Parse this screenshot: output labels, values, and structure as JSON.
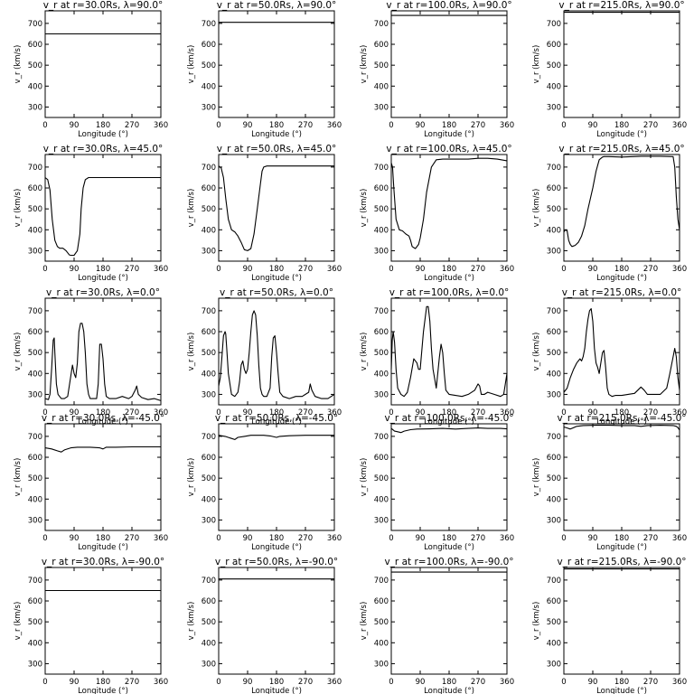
{
  "figure": {
    "xlabel": "Longitude (°)",
    "ylabel": "v_r (km/s)",
    "xticks": [
      0,
      90,
      180,
      270,
      360
    ],
    "yticks": [
      300,
      400,
      500,
      600,
      700
    ],
    "xlim": [
      0,
      360
    ],
    "ylim": [
      250,
      760
    ]
  },
  "chart_data": [
    {
      "type": "line",
      "title": "v_r at r=30.0Rs, λ=90.0°",
      "xlabel": "Longitude (°)",
      "ylabel": "v_r (km/s)",
      "series": [
        {
          "x": [
            0,
            360
          ],
          "y": [
            650,
            650
          ]
        }
      ]
    },
    {
      "type": "line",
      "title": "v_r at r=50.0Rs, λ=90.0°",
      "xlabel": "Longitude (°)",
      "ylabel": "v_r (km/s)",
      "series": [
        {
          "x": [
            0,
            360
          ],
          "y": [
            705,
            705
          ]
        }
      ]
    },
    {
      "type": "line",
      "title": "v_r at r=100.0Rs, λ=90.0°",
      "xlabel": "Longitude (°)",
      "ylabel": "v_r (km/s)",
      "series": [
        {
          "x": [
            0,
            360
          ],
          "y": [
            738,
            738
          ]
        }
      ]
    },
    {
      "type": "line",
      "title": "v_r at r=215.0Rs, λ=90.0°",
      "xlabel": "Longitude (°)",
      "ylabel": "v_r (km/s)",
      "series": [
        {
          "x": [
            0,
            360
          ],
          "y": [
            753,
            753
          ]
        }
      ]
    },
    {
      "type": "line",
      "title": "v_r at r=30.0Rs, λ=45.0°",
      "xlabel": "Longitude (°)",
      "ylabel": "v_r (km/s)",
      "series": [
        {
          "x": [
            0,
            8,
            15,
            22,
            30,
            38,
            45,
            55,
            65,
            75,
            80,
            90,
            100,
            108,
            112,
            118,
            125,
            135,
            150,
            180,
            270,
            360
          ],
          "y": [
            650,
            640,
            590,
            450,
            350,
            320,
            312,
            312,
            300,
            280,
            278,
            278,
            300,
            380,
            500,
            600,
            640,
            650,
            650,
            650,
            650,
            650
          ]
        }
      ]
    },
    {
      "type": "line",
      "title": "v_r at r=50.0Rs, λ=45.0°",
      "xlabel": "Longitude (°)",
      "ylabel": "v_r (km/s)",
      "series": [
        {
          "x": [
            0,
            8,
            15,
            22,
            30,
            40,
            50,
            60,
            70,
            80,
            90,
            100,
            110,
            120,
            130,
            135,
            140,
            150,
            180,
            270,
            360
          ],
          "y": [
            705,
            695,
            650,
            550,
            450,
            400,
            390,
            370,
            340,
            305,
            300,
            310,
            380,
            500,
            620,
            680,
            700,
            705,
            705,
            705,
            705
          ]
        }
      ]
    },
    {
      "type": "line",
      "title": "v_r at r=100.0Rs, λ=45.0°",
      "xlabel": "Longitude (°)",
      "ylabel": "v_r (km/s)",
      "series": [
        {
          "x": [
            0,
            4,
            8,
            15,
            25,
            35,
            45,
            55,
            60,
            65,
            75,
            85,
            90,
            100,
            110,
            125,
            140,
            160,
            200,
            240,
            270,
            300,
            330,
            360
          ],
          "y": [
            720,
            700,
            600,
            450,
            400,
            395,
            380,
            370,
            350,
            320,
            310,
            330,
            360,
            450,
            580,
            700,
            735,
            738,
            738,
            738,
            742,
            742,
            738,
            730
          ]
        }
      ]
    },
    {
      "type": "line",
      "title": "v_r at r=215.0Rs, λ=45.0°",
      "xlabel": "Longitude (°)",
      "ylabel": "v_r (km/s)",
      "series": [
        {
          "x": [
            0,
            5,
            10,
            15,
            20,
            25,
            35,
            45,
            55,
            65,
            75,
            90,
            100,
            110,
            120,
            125,
            140,
            180,
            240,
            300,
            340,
            345,
            350,
            355,
            360
          ],
          "y": [
            390,
            400,
            395,
            350,
            330,
            320,
            325,
            340,
            370,
            420,
            500,
            600,
            680,
            735,
            748,
            750,
            750,
            748,
            752,
            752,
            750,
            700,
            560,
            450,
            400
          ]
        }
      ]
    },
    {
      "type": "line",
      "title": "v_r at r=30.0Rs, λ=0.0°",
      "xlabel": "Longitude (°)",
      "ylabel": "v_r (km/s)",
      "series": [
        {
          "x": [
            0,
            10,
            15,
            20,
            25,
            28,
            30,
            35,
            40,
            50,
            60,
            70,
            85,
            90,
            95,
            100,
            105,
            110,
            115,
            120,
            125,
            130,
            135,
            140,
            150,
            160,
            165,
            170,
            175,
            180,
            185,
            190,
            200,
            220,
            240,
            260,
            270,
            280,
            285,
            290,
            300,
            320,
            340,
            360
          ],
          "y": [
            280,
            275,
            300,
            420,
            560,
            570,
            500,
            350,
            300,
            280,
            280,
            290,
            440,
            400,
            380,
            450,
            600,
            640,
            640,
            600,
            500,
            350,
            300,
            280,
            280,
            280,
            350,
            540,
            540,
            470,
            350,
            290,
            280,
            280,
            290,
            280,
            290,
            320,
            340,
            300,
            285,
            275,
            280,
            270
          ]
        }
      ]
    },
    {
      "type": "line",
      "title": "v_r at r=50.0Rs, λ=0.0°",
      "xlabel": "Longitude (°)",
      "ylabel": "v_r (km/s)",
      "series": [
        {
          "x": [
            0,
            5,
            10,
            15,
            20,
            22,
            25,
            30,
            40,
            50,
            60,
            65,
            70,
            75,
            80,
            85,
            90,
            95,
            100,
            105,
            110,
            115,
            120,
            125,
            130,
            135,
            140,
            150,
            160,
            165,
            170,
            175,
            180,
            185,
            190,
            200,
            220,
            240,
            260,
            270,
            280,
            285,
            290,
            300,
            320,
            340,
            360
          ],
          "y": [
            340,
            380,
            480,
            580,
            600,
            590,
            520,
            400,
            300,
            290,
            310,
            360,
            440,
            460,
            420,
            400,
            420,
            500,
            600,
            680,
            700,
            680,
            580,
            440,
            330,
            300,
            290,
            290,
            330,
            480,
            570,
            580,
            500,
            400,
            310,
            290,
            280,
            290,
            290,
            300,
            310,
            350,
            320,
            290,
            280,
            280,
            300
          ]
        }
      ]
    },
    {
      "type": "line",
      "title": "v_r at r=100.0Rs, λ=0.0°",
      "xlabel": "Longitude (°)",
      "ylabel": "v_r (km/s)",
      "series": [
        {
          "x": [
            0,
            3,
            6,
            10,
            15,
            20,
            30,
            40,
            50,
            60,
            70,
            80,
            85,
            90,
            100,
            110,
            115,
            120,
            125,
            130,
            140,
            150,
            155,
            160,
            165,
            170,
            180,
            200,
            220,
            240,
            260,
            270,
            275,
            280,
            290,
            300,
            320,
            340,
            350,
            355,
            360
          ],
          "y": [
            420,
            560,
            600,
            550,
            420,
            330,
            300,
            290,
            310,
            380,
            470,
            450,
            420,
            420,
            600,
            720,
            720,
            650,
            520,
            420,
            330,
            480,
            540,
            500,
            400,
            320,
            300,
            295,
            290,
            300,
            320,
            350,
            340,
            300,
            300,
            310,
            300,
            290,
            300,
            350,
            400
          ]
        }
      ]
    },
    {
      "type": "line",
      "title": "v_r at r=215.0Rs, λ=0.0°",
      "xlabel": "Longitude (°)",
      "ylabel": "v_r (km/s)",
      "series": [
        {
          "x": [
            0,
            10,
            20,
            30,
            40,
            50,
            55,
            60,
            65,
            70,
            75,
            80,
            85,
            90,
            95,
            100,
            105,
            110,
            115,
            120,
            125,
            130,
            135,
            140,
            150,
            160,
            180,
            200,
            220,
            230,
            240,
            250,
            260,
            280,
            300,
            320,
            330,
            340,
            345,
            350,
            355,
            360
          ],
          "y": [
            310,
            330,
            380,
            420,
            450,
            470,
            460,
            480,
            520,
            600,
            660,
            700,
            710,
            650,
            520,
            450,
            430,
            400,
            450,
            500,
            510,
            430,
            330,
            300,
            290,
            295,
            295,
            300,
            305,
            320,
            335,
            320,
            300,
            300,
            300,
            330,
            400,
            480,
            520,
            480,
            380,
            320
          ]
        }
      ]
    },
    {
      "type": "line",
      "title": "v_r at r=30.0Rs, λ=-45.0°",
      "xlabel": "Longitude (°)",
      "ylabel": "v_r (km/s)",
      "series": [
        {
          "x": [
            0,
            20,
            40,
            50,
            60,
            80,
            100,
            140,
            170,
            180,
            190,
            220,
            270,
            360
          ],
          "y": [
            645,
            640,
            630,
            625,
            635,
            645,
            648,
            648,
            645,
            640,
            648,
            648,
            650,
            650
          ]
        }
      ]
    },
    {
      "type": "line",
      "title": "v_r at r=50.0Rs, λ=-45.0°",
      "xlabel": "Longitude (°)",
      "ylabel": "v_r (km/s)",
      "series": [
        {
          "x": [
            0,
            20,
            40,
            50,
            60,
            80,
            100,
            140,
            160,
            180,
            190,
            220,
            270,
            360
          ],
          "y": [
            705,
            700,
            690,
            685,
            695,
            700,
            705,
            705,
            702,
            695,
            700,
            703,
            705,
            705
          ]
        }
      ]
    },
    {
      "type": "line",
      "title": "v_r at r=100.0Rs, λ=-45.0°",
      "xlabel": "Longitude (°)",
      "ylabel": "v_r (km/s)",
      "series": [
        {
          "x": [
            0,
            10,
            20,
            30,
            40,
            60,
            80,
            120,
            160,
            200,
            240,
            270,
            300,
            340,
            360
          ],
          "y": [
            738,
            725,
            722,
            718,
            725,
            732,
            735,
            736,
            738,
            735,
            738,
            740,
            738,
            738,
            736
          ]
        }
      ]
    },
    {
      "type": "line",
      "title": "v_r at r=215.0Rs, λ=-45.0°",
      "xlabel": "Longitude (°)",
      "ylabel": "v_r (km/s)",
      "series": [
        {
          "x": [
            0,
            10,
            20,
            40,
            60,
            100,
            140,
            180,
            220,
            240,
            260,
            300,
            340,
            350,
            355,
            360
          ],
          "y": [
            745,
            740,
            735,
            748,
            752,
            753,
            753,
            752,
            752,
            748,
            752,
            753,
            752,
            748,
            742,
            730
          ]
        }
      ]
    },
    {
      "type": "line",
      "title": "v_r at r=30.0Rs, λ=-90.0°",
      "xlabel": "Longitude (°)",
      "ylabel": "v_r (km/s)",
      "series": [
        {
          "x": [
            0,
            360
          ],
          "y": [
            650,
            650
          ]
        }
      ]
    },
    {
      "type": "line",
      "title": "v_r at r=50.0Rs, λ=-90.0°",
      "xlabel": "Longitude (°)",
      "ylabel": "v_r (km/s)",
      "series": [
        {
          "x": [
            0,
            360
          ],
          "y": [
            705,
            705
          ]
        }
      ]
    },
    {
      "type": "line",
      "title": "v_r at r=100.0Rs, λ=-90.0°",
      "xlabel": "Longitude (°)",
      "ylabel": "v_r (km/s)",
      "series": [
        {
          "x": [
            0,
            360
          ],
          "y": [
            738,
            738
          ]
        }
      ]
    },
    {
      "type": "line",
      "title": "v_r at r=215.0Rs, λ=-90.0°",
      "xlabel": "Longitude (°)",
      "ylabel": "v_r (km/s)",
      "series": [
        {
          "x": [
            0,
            360
          ],
          "y": [
            753,
            753
          ]
        }
      ]
    }
  ]
}
